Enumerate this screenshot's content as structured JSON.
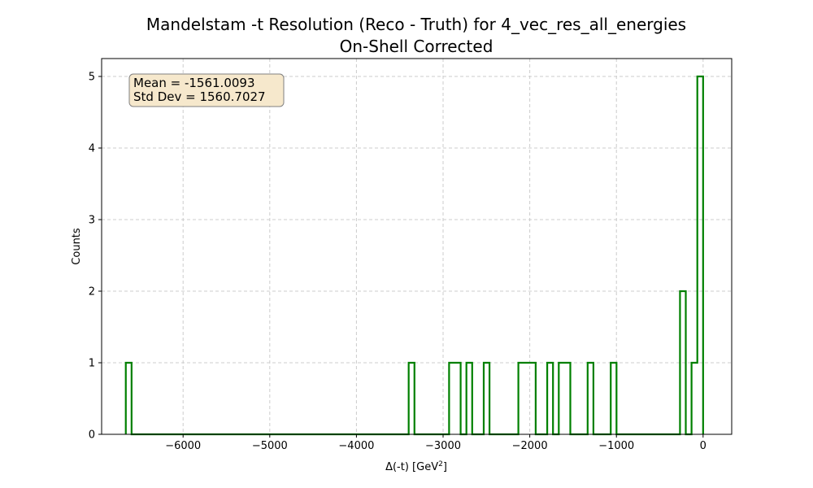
{
  "chart_data": {
    "type": "histogram",
    "title_line1": "Mandelstam -t Resolution (Reco - Truth) for 4_vec_res_all_energies",
    "title_line2": "On-Shell Corrected",
    "xlabel_main": "Δ(-t) [GeV",
    "xlabel_sup": "2",
    "xlabel_close": "]",
    "ylabel": "Counts",
    "xlim": [
      -6940,
      330
    ],
    "ylim": [
      0,
      5.25
    ],
    "xticks": [
      -6000,
      -5000,
      -4000,
      -3000,
      -2000,
      -1000,
      0
    ],
    "xtick_labels": [
      "−6000",
      "−5000",
      "−4000",
      "−3000",
      "−2000",
      "−1000",
      "0"
    ],
    "yticks": [
      0,
      1,
      2,
      3,
      4,
      5
    ],
    "ytick_labels": [
      "0",
      "1",
      "2",
      "3",
      "4",
      "5"
    ],
    "grid": true,
    "line_color": "#008000",
    "stats_box": {
      "mean_line": "Mean = -1561.0093",
      "std_line": "Std Dev = 1560.7027",
      "fill": "#f6e8cc",
      "edge": "#808080"
    },
    "bins": {
      "start": -6661,
      "width": 66.61,
      "count": 100
    },
    "nonzero_counts": [
      {
        "bin": 0,
        "count": 1
      },
      {
        "bin": 49,
        "count": 1
      },
      {
        "bin": 56,
        "count": 1
      },
      {
        "bin": 57,
        "count": 1
      },
      {
        "bin": 59,
        "count": 1
      },
      {
        "bin": 62,
        "count": 1
      },
      {
        "bin": 68,
        "count": 1
      },
      {
        "bin": 69,
        "count": 1
      },
      {
        "bin": 70,
        "count": 1
      },
      {
        "bin": 73,
        "count": 1
      },
      {
        "bin": 75,
        "count": 1
      },
      {
        "bin": 76,
        "count": 1
      },
      {
        "bin": 80,
        "count": 1
      },
      {
        "bin": 84,
        "count": 1
      },
      {
        "bin": 96,
        "count": 2
      },
      {
        "bin": 98,
        "count": 1
      },
      {
        "bin": 99,
        "count": 5
      }
    ]
  }
}
